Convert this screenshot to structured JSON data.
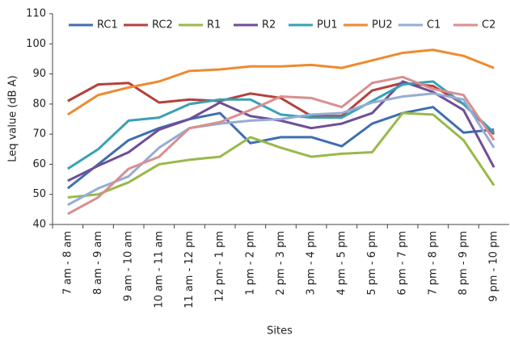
{
  "chart_data": {
    "type": "line",
    "x_label": "Sites",
    "y_label": "Leq value (dB A)",
    "categories": [
      "7 am - 8 am",
      "8 am - 9 am",
      "9 am - 10 am",
      "10 am - 11 am",
      "11 am - 12 pm",
      "12 pm - 1 pm",
      "1 pm - 2 pm",
      "2 pm - 3 pm",
      "3 pm - 4 pm",
      "4 pm - 5 pm",
      "5 pm - 6 pm",
      "6 pm - 7 pm",
      "7 pm - 8 pm",
      "8 pm - 9 pm",
      "9 pm - 10 pm"
    ],
    "series": [
      {
        "name": "RC1",
        "color": "#3e6fb0",
        "values": [
          52,
          60,
          68,
          72,
          75,
          77,
          67,
          69,
          69,
          66,
          73.5,
          77,
          79,
          70.5,
          71.5
        ]
      },
      {
        "name": "RC2",
        "color": "#b5413d",
        "values": [
          81,
          86.5,
          87,
          80.5,
          81.5,
          81,
          83.5,
          82,
          76,
          76,
          84.5,
          87,
          86,
          80,
          70
        ]
      },
      {
        "name": "R1",
        "color": "#98b94a",
        "values": [
          49,
          50,
          54,
          60,
          61.5,
          62.5,
          69,
          65.5,
          62.5,
          63.5,
          64,
          77,
          76.5,
          68,
          53
        ]
      },
      {
        "name": "R2",
        "color": "#6f4e96",
        "values": [
          54.5,
          59.5,
          64,
          71.5,
          75,
          80.5,
          76,
          74.5,
          72,
          73.5,
          77,
          87.5,
          84,
          78,
          59
        ]
      },
      {
        "name": "PU1",
        "color": "#3aa0b6",
        "values": [
          58.5,
          65,
          74.5,
          75.5,
          80,
          81.5,
          81.5,
          76.5,
          75.5,
          75.5,
          81,
          86.5,
          87.5,
          80,
          70.5
        ]
      },
      {
        "name": "PU2",
        "color": "#ef8a2e",
        "values": [
          76.5,
          83,
          85.5,
          87.5,
          91,
          91.5,
          92.5,
          92.5,
          93,
          92,
          94.5,
          97,
          98,
          96,
          92
        ]
      },
      {
        "name": "C1",
        "color": "#94acd6",
        "values": [
          46.5,
          52,
          56,
          65.5,
          72,
          73.5,
          74.5,
          75,
          76.5,
          77,
          80.5,
          82.5,
          83.5,
          81.5,
          65.5
        ]
      },
      {
        "name": "C2",
        "color": "#d98f8f",
        "values": [
          43.5,
          49,
          58.5,
          62.5,
          72,
          74,
          78,
          82.5,
          82,
          79,
          87,
          89,
          85,
          83,
          68
        ]
      }
    ],
    "ylim": [
      40,
      110
    ],
    "yticks": [
      40,
      50,
      60,
      70,
      80,
      90,
      100,
      110
    ],
    "grid": false,
    "legend": "top"
  }
}
